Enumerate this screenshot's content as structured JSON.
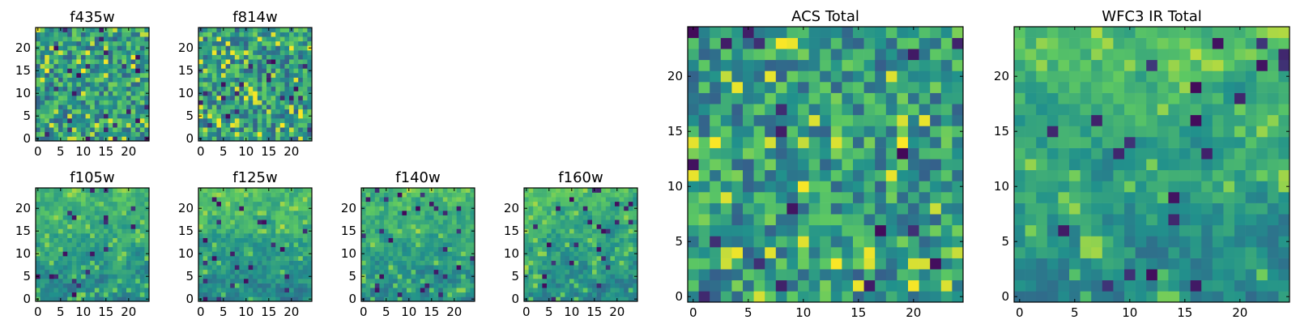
{
  "colormap": [
    "#440154",
    "#3b528b",
    "#21918c",
    "#5ec962",
    "#fde725"
  ],
  "chart_data": [
    {
      "type": "heatmap",
      "title": "f435w",
      "size": 25,
      "seed": 11,
      "style": "noise",
      "vmin": 0,
      "vmax": 1,
      "xticks": [
        0,
        5,
        10,
        15,
        20
      ],
      "yticks": [
        0,
        5,
        10,
        15,
        20
      ]
    },
    {
      "type": "heatmap",
      "title": "f814w",
      "size": 25,
      "seed": 23,
      "style": "noise",
      "vmin": 0,
      "vmax": 1,
      "xticks": [
        0,
        5,
        10,
        15,
        20
      ],
      "yticks": [
        0,
        5,
        10,
        15,
        20
      ]
    },
    {
      "type": "heatmap",
      "title": "f105w",
      "size": 25,
      "seed": 37,
      "style": "smooth",
      "vmin": 0,
      "vmax": 1,
      "xticks": [
        0,
        5,
        10,
        15,
        20
      ],
      "yticks": [
        0,
        5,
        10,
        15,
        20
      ]
    },
    {
      "type": "heatmap",
      "title": "f125w",
      "size": 25,
      "seed": 41,
      "style": "smooth",
      "vmin": 0,
      "vmax": 1,
      "xticks": [
        0,
        5,
        10,
        15,
        20
      ],
      "yticks": [
        0,
        5,
        10,
        15,
        20
      ]
    },
    {
      "type": "heatmap",
      "title": "f140w",
      "size": 25,
      "seed": 53,
      "style": "smooth",
      "vmin": 0,
      "vmax": 1,
      "xticks": [
        0,
        5,
        10,
        15,
        20
      ],
      "yticks": [
        0,
        5,
        10,
        15,
        20
      ]
    },
    {
      "type": "heatmap",
      "title": "f160w",
      "size": 25,
      "seed": 67,
      "style": "smooth",
      "vmin": 0,
      "vmax": 1,
      "xticks": [
        0,
        5,
        10,
        15,
        20
      ],
      "yticks": [
        0,
        5,
        10,
        15,
        20
      ]
    },
    {
      "type": "heatmap",
      "title": "ACS Total",
      "size": 25,
      "seed": 79,
      "style": "noise",
      "vmin": 0,
      "vmax": 1,
      "xticks": [
        0,
        5,
        10,
        15,
        20
      ],
      "yticks": [
        0,
        5,
        10,
        15,
        20
      ]
    },
    {
      "type": "heatmap",
      "title": "WFC3 IR Total",
      "size": 25,
      "seed": 97,
      "style": "smooth",
      "vmin": 0,
      "vmax": 1,
      "xticks": [
        0,
        5,
        10,
        15,
        20
      ],
      "yticks": [
        0,
        5,
        10,
        15,
        20
      ]
    }
  ]
}
